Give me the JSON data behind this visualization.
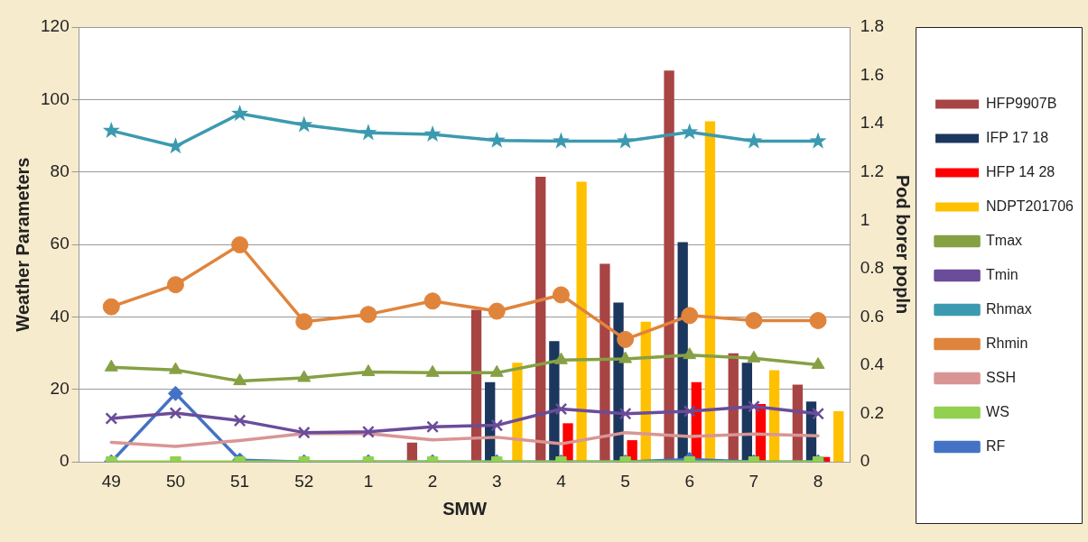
{
  "chart_data": {
    "type": "bar",
    "xlabel": "SMW",
    "ylabel": "Weather Parameters",
    "y2label": "Pod borer popln",
    "categories": [
      "49",
      "50",
      "51",
      "52",
      "1",
      "2",
      "3",
      "4",
      "5",
      "6",
      "7",
      "8"
    ],
    "series": [
      {
        "name": "HFP9907B",
        "axis": "y2",
        "color": "#a84444",
        "values": [
          0,
          0,
          0,
          0,
          0,
          0.08,
          0.63,
          1.18,
          0.82,
          1.62,
          0.45,
          0.32
        ]
      },
      {
        "name": "IFP 17 18",
        "axis": "y2",
        "color": "#1b375e",
        "values": [
          0,
          0,
          0,
          0,
          0,
          0,
          0.33,
          0.5,
          0.66,
          0.91,
          0.41,
          0.25
        ]
      },
      {
        "name": "HFP 14 28",
        "axis": "y2",
        "color": "#ff0000",
        "values": [
          0,
          0,
          0,
          0,
          0,
          0,
          0,
          0.16,
          0.09,
          0.33,
          0.24,
          0.02
        ]
      },
      {
        "name": "NDPT201706",
        "axis": "y2",
        "color": "#ffc000",
        "values": [
          0,
          0,
          0,
          0,
          0,
          0,
          0.41,
          1.16,
          0.58,
          1.41,
          0.38,
          0.21
        ]
      },
      {
        "name": "Tmax",
        "type": "line",
        "marker": "triangle",
        "color": "#86a044",
        "values": [
          26.1,
          25.4,
          22.3,
          23.2,
          24.8,
          24.6,
          24.6,
          28.1,
          28.4,
          29.5,
          28.6,
          26.8
        ]
      },
      {
        "name": "Tmin",
        "type": "line",
        "marker": "cross",
        "color": "#6b4c9a",
        "values": [
          12,
          13.5,
          11.4,
          8.1,
          8.3,
          9.7,
          10.1,
          14.6,
          13.3,
          14,
          15.3,
          13.3
        ]
      },
      {
        "name": "Rhmax",
        "type": "line",
        "marker": "star",
        "color": "#3c9ab0",
        "values": [
          91.4,
          87.1,
          96.1,
          93,
          90.8,
          90.4,
          88.7,
          88.5,
          88.5,
          91,
          88.5,
          88.5
        ]
      },
      {
        "name": "Rhmin",
        "type": "line",
        "marker": "circle",
        "color": "#e0843c",
        "values": [
          42.8,
          48.9,
          59.9,
          38.7,
          40.7,
          44.4,
          41.6,
          46.1,
          33.8,
          40.4,
          39,
          39
        ]
      },
      {
        "name": "SSH",
        "type": "line",
        "marker": "none",
        "color": "#d99594",
        "values": [
          5.4,
          4.3,
          5.9,
          7.8,
          7.8,
          6.1,
          6.8,
          5,
          8.1,
          7,
          7.7,
          7.2
        ]
      },
      {
        "name": "WS",
        "type": "line",
        "marker": "square",
        "color": "#92d050",
        "values": [
          0,
          0,
          0,
          0,
          0,
          0,
          0,
          0,
          0,
          0,
          0,
          0
        ]
      },
      {
        "name": "RF",
        "type": "line",
        "marker": "diamond",
        "color": "#4472c4",
        "values": [
          0,
          18.9,
          0.5,
          0,
          0,
          0,
          0,
          0,
          0,
          0.7,
          0,
          0
        ]
      }
    ],
    "ylim": [
      0,
      120
    ],
    "yticks": [
      0,
      20,
      40,
      60,
      80,
      100,
      120
    ],
    "y2lim": [
      0,
      1.8
    ],
    "y2ticks": [
      0,
      0.2,
      0.4,
      0.6,
      0.8,
      1,
      1.2,
      1.4,
      1.6,
      1.8
    ],
    "grid": "y",
    "legend": "right"
  }
}
